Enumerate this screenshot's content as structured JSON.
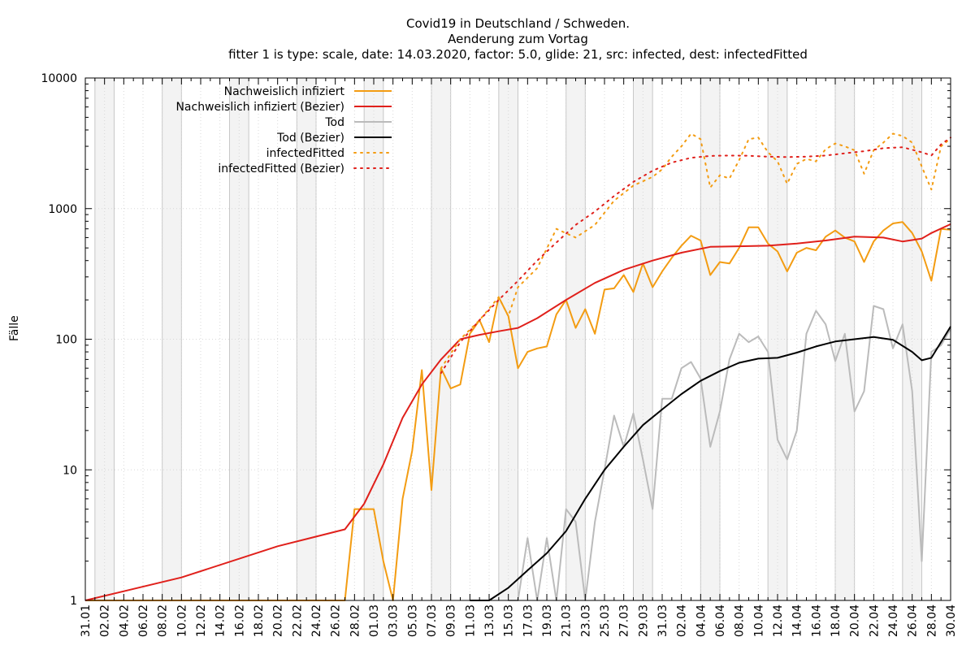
{
  "chart_data": {
    "type": "line",
    "title": "Covid19 in Deutschland / Schweden.",
    "subtitle": "Aenderung zum Vortag",
    "subtitle2": "fitter 1 is type: scale, date: 14.03.2020, factor: 5.0, glide: 21, src: infected, dest: infectedFitted",
    "xlabel": "",
    "ylabel": "Fälle",
    "yscale": "log",
    "ylim": [
      1,
      10000
    ],
    "y_ticks": [
      "1",
      "10",
      "100",
      "1000",
      "10000"
    ],
    "x_tick_labels": [
      "31.01",
      "02.02",
      "04.02",
      "06.02",
      "08.02",
      "10.02",
      "12.02",
      "14.02",
      "16.02",
      "18.02",
      "20.02",
      "22.02",
      "24.02",
      "26.02",
      "28.02",
      "01.03",
      "03.03",
      "05.03",
      "07.03",
      "09.03",
      "11.03",
      "13.03",
      "15.03",
      "17.03",
      "19.03",
      "21.03",
      "23.03",
      "25.03",
      "27.03",
      "29.03",
      "31.03",
      "02.04",
      "04.04",
      "06.04",
      "08.04",
      "10.04",
      "12.04",
      "14.04",
      "16.04",
      "18.04",
      "20.04",
      "22.04",
      "24.04",
      "26.04",
      "28.04",
      "30.04"
    ],
    "grid": true,
    "weekend_shading": true,
    "legend_position": "top-left",
    "series": [
      {
        "name": "Nachweislich infiziert",
        "color": "#f39c12",
        "style": "solid",
        "x": [
          0,
          27,
          28,
          29,
          30,
          31,
          32,
          33,
          34,
          35,
          36,
          37,
          38,
          39,
          40,
          41,
          42,
          43,
          44,
          45,
          46,
          47,
          48,
          49,
          50,
          51,
          52,
          53,
          54,
          55,
          56,
          57,
          58,
          59,
          60,
          61,
          62,
          63,
          64,
          65,
          66,
          67,
          68,
          69,
          70,
          71,
          72,
          73,
          74,
          75,
          76,
          77,
          78,
          79,
          80,
          81,
          82,
          83,
          84,
          85,
          86,
          87,
          88,
          89,
          90
        ],
        "y": [
          1,
          1,
          5,
          5,
          5,
          2,
          1,
          6,
          14,
          58,
          7,
          60,
          42,
          45,
          110,
          140,
          95,
          210,
          150,
          60,
          80,
          85,
          88,
          155,
          200,
          122,
          170,
          110,
          240,
          245,
          310,
          230,
          380,
          250,
          330,
          420,
          520,
          620,
          570,
          310,
          390,
          380,
          500,
          720,
          720,
          540,
          470,
          330,
          460,
          500,
          480,
          610,
          680,
          600,
          560,
          390,
          560,
          680,
          770,
          790,
          650,
          470,
          280,
          700,
          690
        ]
      },
      {
        "name": "Nachweislich infiziert (Bezier)",
        "color": "#e0201b",
        "style": "solid",
        "x": [
          0,
          10,
          20,
          27,
          29,
          31,
          33,
          35,
          37,
          39,
          41,
          43,
          45,
          47,
          50,
          53,
          56,
          59,
          62,
          65,
          68,
          71,
          74,
          77,
          80,
          83,
          85,
          87,
          88,
          90
        ],
        "y": [
          1,
          1.5,
          2.6,
          3.5,
          5.5,
          11,
          25,
          45,
          70,
          100,
          108,
          115,
          122,
          145,
          200,
          270,
          340,
          400,
          460,
          510,
          515,
          520,
          540,
          570,
          610,
          600,
          560,
          590,
          650,
          760
        ]
      },
      {
        "name": "Tod",
        "color": "#bbbbbb",
        "style": "solid",
        "x": [
          44,
          45,
          46,
          47,
          48,
          49,
          50,
          51,
          52,
          53,
          54,
          55,
          56,
          57,
          58,
          59,
          60,
          61,
          62,
          63,
          64,
          65,
          66,
          67,
          68,
          69,
          70,
          71,
          72,
          73,
          74,
          75,
          76,
          77,
          78,
          79,
          80,
          81,
          82,
          83,
          84,
          85,
          86,
          87,
          88,
          89,
          90
        ],
        "y": [
          1,
          1,
          3,
          1,
          3,
          1,
          5,
          4,
          1,
          4,
          10,
          26,
          15,
          27,
          12,
          5,
          35,
          35,
          60,
          67,
          50,
          15,
          28,
          70,
          110,
          95,
          105,
          80,
          17,
          12,
          20,
          110,
          165,
          130,
          68,
          110,
          28,
          40,
          180,
          170,
          85,
          130,
          40,
          2,
          80,
          90,
          120
        ]
      },
      {
        "name": "Tod (Bezier)",
        "color": "#000000",
        "style": "solid",
        "x": [
          40,
          42,
          44,
          46,
          48,
          50,
          52,
          54,
          56,
          58,
          60,
          62,
          64,
          66,
          68,
          70,
          72,
          74,
          76,
          78,
          80,
          82,
          84,
          86,
          87,
          88,
          90
        ],
        "y": [
          1,
          1,
          1.25,
          1.7,
          2.3,
          3.4,
          6,
          10,
          15,
          22,
          29,
          38,
          48,
          57,
          66,
          71,
          72,
          79,
          88,
          96,
          100,
          104,
          99,
          80,
          69,
          72,
          125
        ]
      },
      {
        "name": "infectedFitted",
        "color": "#f39c12",
        "style": "dotted",
        "x": [
          37,
          39,
          41,
          43,
          44,
          45,
          47,
          49,
          51,
          53,
          55,
          57,
          59,
          60,
          61,
          62,
          63,
          64,
          65,
          66,
          67,
          68,
          69,
          70,
          71,
          72,
          73,
          74,
          75,
          76,
          77,
          78,
          79,
          80,
          81,
          82,
          83,
          84,
          85,
          86,
          87,
          88,
          89,
          90
        ],
        "y": [
          60,
          100,
          140,
          210,
          150,
          250,
          350,
          700,
          600,
          750,
          1150,
          1500,
          1750,
          2000,
          2500,
          3000,
          3750,
          3400,
          1450,
          1800,
          1700,
          2350,
          3400,
          3500,
          2700,
          2300,
          1550,
          2200,
          2400,
          2300,
          2850,
          3150,
          3000,
          2800,
          1850,
          2800,
          3200,
          3750,
          3600,
          3200,
          2100,
          1400,
          3000,
          3450
        ]
      },
      {
        "name": "infectedFitted (Bezier)",
        "color": "#e0201b",
        "style": "dotted",
        "x": [
          37,
          39,
          41,
          43,
          45,
          47,
          49,
          51,
          53,
          55,
          57,
          59,
          61,
          63,
          65,
          67,
          69,
          71,
          73,
          75,
          77,
          79,
          81,
          83,
          85,
          87,
          88,
          89,
          90
        ],
        "y": [
          55,
          95,
          140,
          200,
          280,
          400,
          550,
          750,
          950,
          1250,
          1600,
          1950,
          2250,
          2450,
          2530,
          2550,
          2540,
          2500,
          2480,
          2500,
          2550,
          2650,
          2750,
          2900,
          2950,
          2700,
          2550,
          3100,
          3500
        ]
      }
    ]
  }
}
